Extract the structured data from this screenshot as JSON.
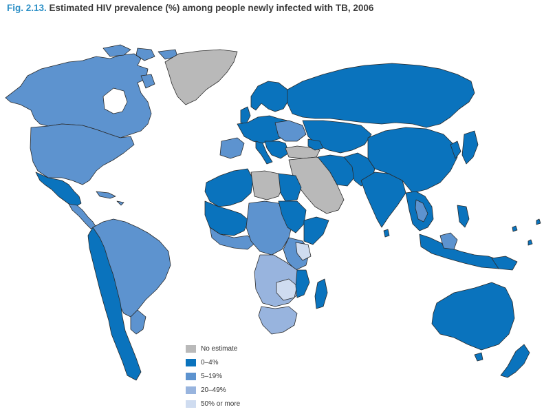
{
  "title": {
    "number": "Fig. 2.13.",
    "text": "Estimated HIV prevalence (%) among people newly infected with TB, 2006"
  },
  "colors": {
    "no_estimate": "#b9b9b9",
    "c0_4": "#0a73bd",
    "c5_19": "#5d93cf",
    "c20_49": "#98b4de",
    "c50_more": "#cfdcf0",
    "border": "#2a2a2a"
  },
  "legend": [
    {
      "label": "No estimate",
      "color": "#b9b9b9"
    },
    {
      "label": "0–4%",
      "color": "#0a73bd"
    },
    {
      "label": "5–19%",
      "color": "#5d93cf"
    },
    {
      "label": "20–49%",
      "color": "#98b4de"
    },
    {
      "label": "50% or more",
      "color": "#cfdcf0"
    }
  ]
}
